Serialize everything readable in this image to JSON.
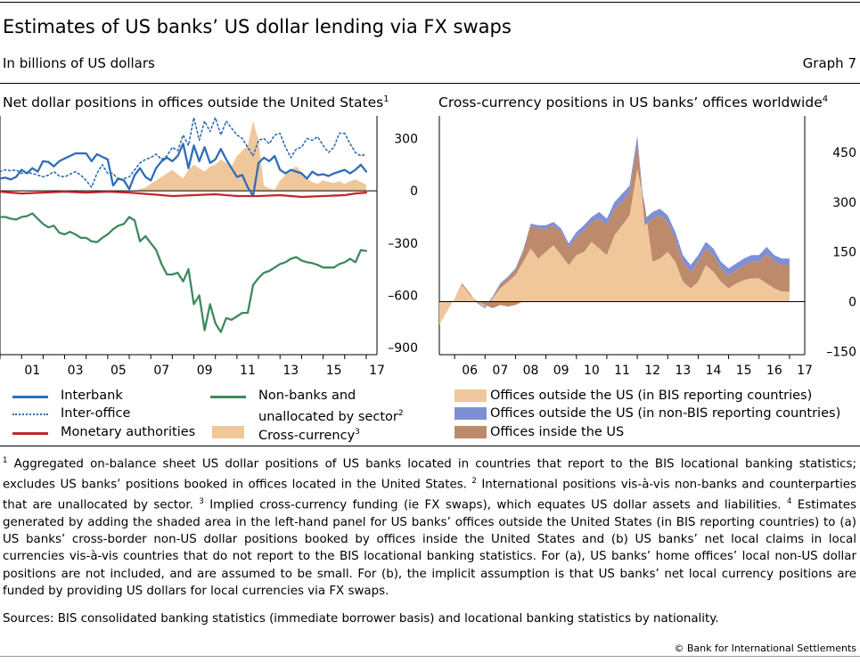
{
  "header": {
    "title": "Estimates of US banks’ US dollar lending via FX swaps",
    "subtitle": "In billions of US dollars",
    "graph_number": "Graph 7"
  },
  "left_panel": {
    "title": "Net dollar positions in offices outside the United States",
    "title_note": "1",
    "legend": [
      {
        "label": "Interbank",
        "note": "",
        "color": "#2f6eb5",
        "style": "solid"
      },
      {
        "label": "Inter-office",
        "note": "",
        "color": "#2f6eb5",
        "style": "dotted"
      },
      {
        "label": "Monetary authorities",
        "note": "",
        "color": "#c0282d",
        "style": "solid"
      },
      {
        "label": "Non-banks and",
        "label2": "unallocated by sector",
        "note": "2",
        "color": "#3e8a5e",
        "style": "solid"
      },
      {
        "label": "Cross-currency",
        "note": "3",
        "color": "#f0c79a",
        "style": "area"
      }
    ]
  },
  "right_panel": {
    "title": "Cross-currency positions in US banks’ offices worldwide",
    "title_note": "4",
    "legend": [
      {
        "label": "Offices outside the US (in BIS reporting countries)",
        "color": "#f0c79a"
      },
      {
        "label": "Offices outside the US (in non-BIS reporting countries)",
        "color": "#7f8fd6"
      },
      {
        "label": "Offices inside the US",
        "color": "#bd8a6b"
      }
    ]
  },
  "footnotes": {
    "n1": "1",
    "t1": " Aggregated on-balance sheet US dollar positions of US banks located in countries that report to the BIS locational banking statistics; excludes US banks’ positions booked in offices located in the United States. ",
    "n2": "2",
    "t2": " International positions vis-à-vis non-banks and counterparties that are unallocated by sector. ",
    "n3": "3",
    "t3": " Implied cross-currency funding (ie FX swaps), which equates US dollar assets and liabilities. ",
    "n4": "4",
    "t4": " Estimates generated by adding the shaded area in the left-hand panel for US banks’ offices outside the United States (in BIS reporting countries) to (a) US banks’ cross-border non-US dollar positions booked by offices inside the United States and (b) US banks’ net local claims in local currencies vis-à-vis countries that do not report to the BIS locational banking statistics. For (a), US banks’ home offices’ local non-US dollar positions are not included, and are assumed to be small. For (b), the implicit assumption is that US banks’ net local currency positions are funded by providing US dollars for local currencies via FX swaps."
  },
  "sources": "Sources: BIS consolidated banking statistics (immediate borrower basis) and locational banking statistics by nationality.",
  "copyright": "© Bank for International Settlements",
  "chart_data": [
    {
      "type": "line",
      "title": "Net dollar positions in offices outside the United States",
      "x_tick_labels": [
        "01",
        "03",
        "05",
        "07",
        "09",
        "11",
        "13",
        "15",
        "17"
      ],
      "x_tick_years": [
        2001,
        2003,
        2005,
        2007,
        2009,
        2011,
        2013,
        2015,
        2017
      ],
      "xlim": [
        2000.0,
        2017.5
      ],
      "ylim": [
        -940,
        430
      ],
      "y_ticks": [
        300,
        0,
        -300,
        -600,
        -900
      ],
      "y_tick_labels": [
        "300",
        "0",
        "–300",
        "–600",
        "–900"
      ],
      "series": [
        {
          "name": "Cross-currency",
          "type": "area",
          "color": "#f0c79a",
          "x": [
            2006.25,
            2006.5,
            2006.75,
            2007.0,
            2007.25,
            2007.5,
            2007.75,
            2008.0,
            2008.25,
            2008.5,
            2008.75,
            2009.0,
            2009.25,
            2009.5,
            2009.75,
            2010.0,
            2010.25,
            2010.5,
            2010.75,
            2011.0,
            2011.25,
            2011.5,
            2011.75,
            2012.0,
            2012.25,
            2012.5,
            2012.75,
            2013.0,
            2013.25,
            2013.5,
            2013.75,
            2014.0,
            2014.25,
            2014.5,
            2014.75,
            2015.0,
            2015.25,
            2015.5,
            2015.75,
            2016.0,
            2016.25,
            2016.5,
            2016.75,
            2017.0
          ],
          "values": [
            0,
            10,
            20,
            40,
            60,
            80,
            100,
            120,
            95,
            70,
            120,
            150,
            130,
            110,
            140,
            150,
            180,
            160,
            140,
            200,
            230,
            260,
            400,
            290,
            30,
            15,
            5,
            60,
            90,
            120,
            140,
            110,
            70,
            50,
            40,
            60,
            50,
            45,
            55,
            40,
            55,
            65,
            50,
            35
          ]
        },
        {
          "name": "Interbank",
          "type": "line",
          "color": "#2f6eb5",
          "width": 2.3,
          "x": [
            2000.0,
            2000.25,
            2000.5,
            2000.75,
            2001.0,
            2001.25,
            2001.5,
            2001.75,
            2002.0,
            2002.25,
            2002.5,
            2002.75,
            2003.0,
            2003.25,
            2003.5,
            2003.75,
            2004.0,
            2004.25,
            2004.5,
            2004.75,
            2005.0,
            2005.25,
            2005.5,
            2005.75,
            2006.0,
            2006.25,
            2006.5,
            2006.75,
            2007.0,
            2007.25,
            2007.5,
            2007.75,
            2008.0,
            2008.25,
            2008.5,
            2008.75,
            2009.0,
            2009.25,
            2009.5,
            2009.75,
            2010.0,
            2010.25,
            2010.5,
            2010.75,
            2011.0,
            2011.25,
            2011.5,
            2011.75,
            2012.0,
            2012.25,
            2012.5,
            2012.75,
            2013.0,
            2013.25,
            2013.5,
            2013.75,
            2014.0,
            2014.25,
            2014.5,
            2014.75,
            2015.0,
            2015.25,
            2015.5,
            2015.75,
            2016.0,
            2016.25,
            2016.5,
            2016.75,
            2017.0
          ],
          "values": [
            70,
            75,
            65,
            80,
            120,
            100,
            130,
            110,
            170,
            165,
            140,
            170,
            185,
            200,
            215,
            215,
            215,
            170,
            210,
            195,
            180,
            30,
            70,
            60,
            10,
            90,
            130,
            80,
            60,
            130,
            170,
            190,
            170,
            200,
            270,
            130,
            260,
            170,
            250,
            160,
            180,
            240,
            180,
            130,
            80,
            90,
            20,
            -30,
            160,
            190,
            170,
            200,
            120,
            100,
            120,
            110,
            100,
            70,
            110,
            90,
            95,
            85,
            100,
            110,
            120,
            100,
            120,
            150,
            110
          ]
        },
        {
          "name": "Inter-office",
          "type": "line",
          "color": "#2f6eb5",
          "width": 1.6,
          "dash": "2 3",
          "x": [
            2000.0,
            2000.25,
            2000.5,
            2000.75,
            2001.0,
            2001.25,
            2001.5,
            2001.75,
            2002.0,
            2002.25,
            2002.5,
            2002.75,
            2003.0,
            2003.25,
            2003.5,
            2003.75,
            2004.0,
            2004.25,
            2004.5,
            2004.75,
            2005.0,
            2005.25,
            2005.5,
            2005.75,
            2006.0,
            2006.25,
            2006.5,
            2006.75,
            2007.0,
            2007.25,
            2007.5,
            2007.75,
            2008.0,
            2008.25,
            2008.5,
            2008.75,
            2009.0,
            2009.25,
            2009.5,
            2009.75,
            2010.0,
            2010.25,
            2010.5,
            2010.75,
            2011.0,
            2011.25,
            2011.5,
            2011.75,
            2012.0,
            2012.25,
            2012.5,
            2012.75,
            2013.0,
            2013.25,
            2013.5,
            2013.75,
            2014.0,
            2014.25,
            2014.5,
            2014.75,
            2015.0,
            2015.25,
            2015.5,
            2015.75,
            2016.0,
            2016.25,
            2016.5,
            2016.75,
            2017.0
          ],
          "values": [
            110,
            120,
            115,
            120,
            100,
            105,
            100,
            90,
            80,
            90,
            110,
            85,
            80,
            95,
            110,
            90,
            60,
            20,
            100,
            150,
            100,
            100,
            60,
            70,
            80,
            120,
            160,
            180,
            190,
            210,
            180,
            200,
            250,
            230,
            320,
            260,
            420,
            290,
            400,
            340,
            420,
            320,
            400,
            360,
            320,
            300,
            250,
            200,
            290,
            300,
            270,
            320,
            330,
            250,
            190,
            240,
            250,
            300,
            290,
            310,
            260,
            220,
            250,
            330,
            330,
            270,
            220,
            200,
            210
          ]
        },
        {
          "name": "Monetary authorities",
          "type": "line",
          "color": "#c0282d",
          "width": 2.3,
          "x": [
            2000.0,
            2001.0,
            2002.0,
            2003.0,
            2004.0,
            2005.0,
            2006.0,
            2007.0,
            2008.0,
            2009.0,
            2010.0,
            2011.0,
            2012.0,
            2013.0,
            2014.0,
            2015.0,
            2016.0,
            2016.5,
            2017.0
          ],
          "values": [
            -5,
            -15,
            -10,
            -5,
            -10,
            -5,
            -10,
            -20,
            -30,
            -25,
            -20,
            -30,
            -30,
            -25,
            -35,
            -30,
            -25,
            -15,
            -10
          ]
        },
        {
          "name": "Non-banks and unallocated by sector",
          "type": "line",
          "color": "#3e8a5e",
          "width": 2.3,
          "x": [
            2000.0,
            2000.25,
            2000.5,
            2000.75,
            2001.0,
            2001.25,
            2001.5,
            2001.75,
            2002.0,
            2002.25,
            2002.5,
            2002.75,
            2003.0,
            2003.25,
            2003.5,
            2003.75,
            2004.0,
            2004.25,
            2004.5,
            2004.75,
            2005.0,
            2005.25,
            2005.5,
            2005.75,
            2006.0,
            2006.25,
            2006.5,
            2006.75,
            2007.0,
            2007.25,
            2007.5,
            2007.75,
            2008.0,
            2008.25,
            2008.5,
            2008.75,
            2009.0,
            2009.25,
            2009.5,
            2009.75,
            2010.0,
            2010.25,
            2010.5,
            2010.75,
            2011.0,
            2011.25,
            2011.5,
            2011.75,
            2012.0,
            2012.25,
            2012.5,
            2012.75,
            2013.0,
            2013.25,
            2013.5,
            2013.75,
            2014.0,
            2014.25,
            2014.5,
            2014.75,
            2015.0,
            2015.25,
            2015.5,
            2015.75,
            2016.0,
            2016.25,
            2016.5,
            2016.75,
            2017.0
          ],
          "values": [
            -150,
            -150,
            -160,
            -165,
            -150,
            -145,
            -130,
            -160,
            -190,
            -210,
            -200,
            -240,
            -250,
            -235,
            -250,
            -270,
            -270,
            -290,
            -295,
            -270,
            -250,
            -220,
            -200,
            -190,
            -150,
            -170,
            -290,
            -260,
            -300,
            -340,
            -420,
            -480,
            -480,
            -470,
            -520,
            -450,
            -650,
            -600,
            -800,
            -650,
            -760,
            -810,
            -730,
            -740,
            -720,
            -700,
            -700,
            -540,
            -500,
            -470,
            -460,
            -440,
            -420,
            -410,
            -390,
            -380,
            -400,
            -410,
            -415,
            -425,
            -440,
            -440,
            -440,
            -420,
            -410,
            -390,
            -410,
            -340,
            -345
          ]
        }
      ]
    },
    {
      "type": "area",
      "title": "Cross-currency positions in US banks’ offices worldwide",
      "x_tick_labels": [
        "06",
        "07",
        "08",
        "09",
        "10",
        "11",
        "12",
        "13",
        "14",
        "15",
        "16",
        "17"
      ],
      "x_tick_years": [
        2006,
        2007,
        2008,
        2009,
        2010,
        2011,
        2012,
        2013,
        2014,
        2015,
        2016,
        2017
      ],
      "xlim": [
        2005.5,
        2017.5
      ],
      "ylim": [
        -160,
        560
      ],
      "y_ticks": [
        450,
        300,
        150,
        0,
        -150
      ],
      "y_tick_labels": [
        "450",
        "300",
        "150",
        "0",
        "–150"
      ],
      "x": [
        2005.5,
        2005.75,
        2006.0,
        2006.25,
        2006.5,
        2006.75,
        2007.0,
        2007.25,
        2007.5,
        2007.75,
        2008.0,
        2008.25,
        2008.5,
        2008.75,
        2009.0,
        2009.25,
        2009.5,
        2009.75,
        2010.0,
        2010.25,
        2010.5,
        2010.75,
        2011.0,
        2011.25,
        2011.5,
        2011.75,
        2012.0,
        2012.25,
        2012.5,
        2012.75,
        2013.0,
        2013.25,
        2013.5,
        2013.75,
        2014.0,
        2014.25,
        2014.5,
        2014.75,
        2015.0,
        2015.25,
        2015.5,
        2015.75,
        2016.0,
        2016.25,
        2016.5,
        2016.75,
        2017.0
      ],
      "series": [
        {
          "name": "Offices outside the US (in BIS reporting countries)",
          "color": "#f0c79a",
          "values": [
            -70,
            -30,
            10,
            50,
            20,
            0,
            -20,
            10,
            40,
            60,
            80,
            120,
            160,
            130,
            150,
            170,
            140,
            110,
            140,
            150,
            180,
            160,
            140,
            200,
            230,
            260,
            400,
            290,
            120,
            130,
            150,
            120,
            60,
            40,
            60,
            110,
            90,
            60,
            40,
            55,
            65,
            70,
            70,
            55,
            40,
            30,
            30
          ]
        },
        {
          "name": "Offices inside the US",
          "color": "#bd8a6b",
          "values": [
            0,
            0,
            0,
            5,
            5,
            -5,
            0,
            0,
            10,
            10,
            15,
            30,
            70,
            90,
            70,
            60,
            70,
            55,
            55,
            65,
            60,
            90,
            90,
            80,
            70,
            70,
            80,
            -60,
            130,
            130,
            90,
            70,
            60,
            50,
            60,
            50,
            50,
            40,
            40,
            40,
            45,
            50,
            50,
            90,
            80,
            80,
            80
          ]
        },
        {
          "name": "Offices outside the US (in non-BIS reporting countries)",
          "color": "#7f8fd6",
          "values": [
            0,
            0,
            0,
            0,
            0,
            0,
            5,
            5,
            5,
            5,
            5,
            5,
            5,
            10,
            10,
            10,
            10,
            10,
            15,
            15,
            15,
            20,
            20,
            20,
            25,
            20,
            20,
            20,
            20,
            20,
            20,
            20,
            20,
            20,
            20,
            20,
            20,
            20,
            20,
            20,
            20,
            20,
            20,
            20,
            20,
            20,
            20
          ]
        }
      ],
      "bottom_area": {
        "name": "Offices inside the US",
        "color": "#bd8a6b",
        "x": [
          2006.75,
          2007.0,
          2007.25,
          2007.5,
          2007.75,
          2008.0,
          2008.25
        ],
        "values": [
          0,
          -10,
          -20,
          -10,
          -15,
          -10,
          0
        ]
      }
    }
  ]
}
